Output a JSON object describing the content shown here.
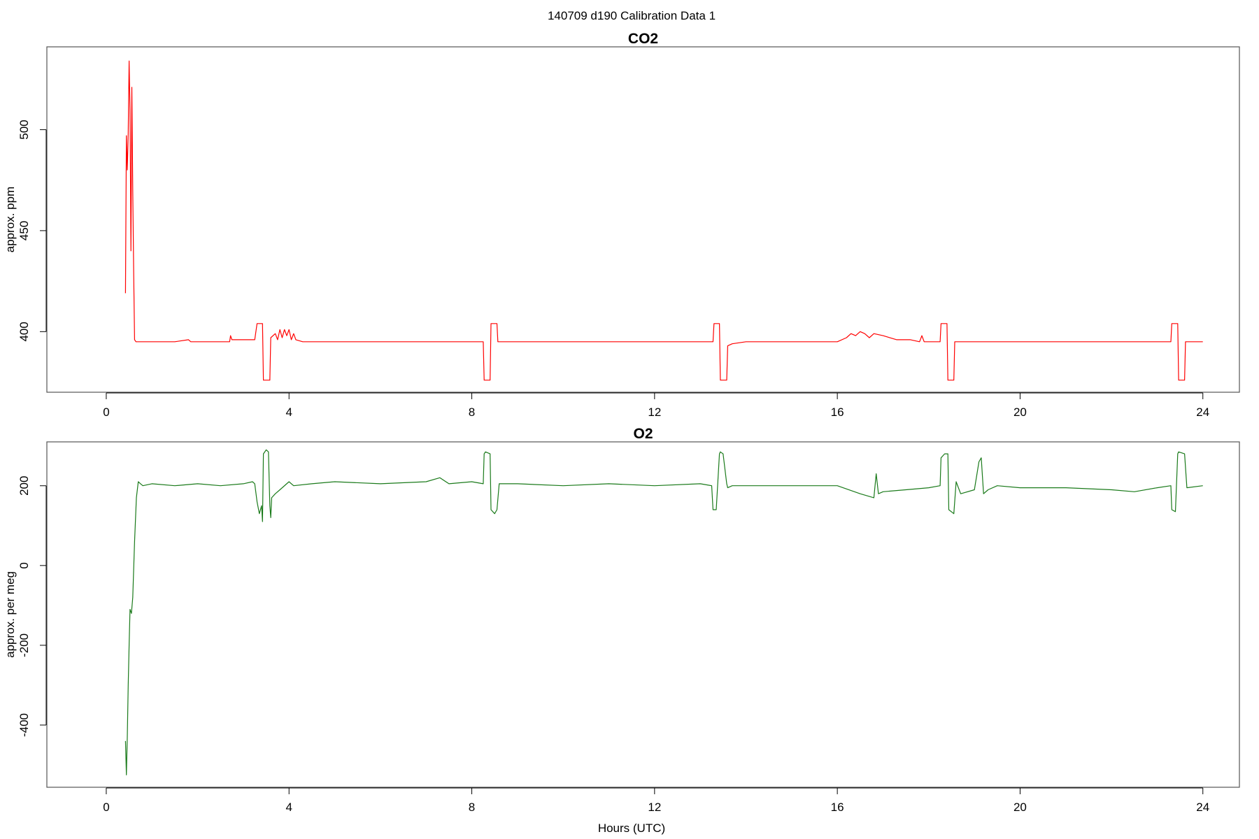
{
  "figure": {
    "title": "140709   d190   Calibration Data 1",
    "xlabel": "Hours (UTC)"
  },
  "chart_data": [
    {
      "type": "line",
      "title": "CO2",
      "ylabel": "approx. ppm",
      "xlim": [
        -1.3,
        24.8
      ],
      "ylim": [
        370,
        541
      ],
      "xticks": [
        "0",
        "4",
        "8",
        "12",
        "16",
        "20",
        "24"
      ],
      "yticks": [
        "400",
        "450",
        "500"
      ],
      "series": [
        {
          "color": "#ff0000",
          "x": [
            0.42,
            0.44,
            0.46,
            0.48,
            0.5,
            0.52,
            0.54,
            0.56,
            0.58,
            0.6,
            0.62,
            0.65,
            0.7,
            1.0,
            1.5,
            1.8,
            1.85,
            1.9,
            2.3,
            2.7,
            2.72,
            2.75,
            3.0,
            3.2,
            3.25,
            3.3,
            3.42,
            3.44,
            3.58,
            3.6,
            3.7,
            3.75,
            3.8,
            3.85,
            3.9,
            3.95,
            4.0,
            4.05,
            4.1,
            4.15,
            4.3,
            5.0,
            6.0,
            7.0,
            8.0,
            8.25,
            8.27,
            8.4,
            8.42,
            8.55,
            8.57,
            9.0,
            10.0,
            11.0,
            12.0,
            13.0,
            13.28,
            13.3,
            13.42,
            13.44,
            13.58,
            13.6,
            13.7,
            14.0,
            15.0,
            16.0,
            16.2,
            16.3,
            16.4,
            16.5,
            16.6,
            16.7,
            16.8,
            17.0,
            17.3,
            17.6,
            17.8,
            17.85,
            17.9,
            18.0,
            18.25,
            18.27,
            18.4,
            18.42,
            18.55,
            18.57,
            19.0,
            20.0,
            21.0,
            22.0,
            23.0,
            23.3,
            23.32,
            23.45,
            23.47,
            23.6,
            23.62,
            24.0
          ],
          "y": [
            419,
            497,
            480,
            498,
            534,
            510,
            440,
            521,
            470,
            430,
            396,
            395,
            395,
            395,
            395,
            396,
            395,
            395,
            395,
            395,
            398,
            396,
            396,
            396,
            396,
            404,
            404,
            376,
            376,
            397,
            399,
            396,
            401,
            397,
            401,
            398,
            401,
            396,
            399,
            396,
            395,
            395,
            395,
            395,
            395,
            395,
            376,
            376,
            404,
            404,
            395,
            395,
            395,
            395,
            395,
            395,
            395,
            404,
            404,
            376,
            376,
            393,
            394,
            395,
            395,
            395,
            397,
            399,
            398,
            400,
            399,
            397,
            399,
            398,
            396,
            396,
            395,
            398,
            395,
            395,
            395,
            404,
            404,
            376,
            376,
            395,
            395,
            395,
            395,
            395,
            395,
            395,
            404,
            404,
            376,
            376,
            395,
            395
          ]
        }
      ]
    },
    {
      "type": "line",
      "title": "O2",
      "ylabel": "approx. per meg",
      "xlim": [
        -1.3,
        24.8
      ],
      "ylim": [
        -556,
        310
      ],
      "xticks": [
        "0",
        "4",
        "8",
        "12",
        "16",
        "20",
        "24"
      ],
      "yticks": [
        "-400",
        "-200",
        "0",
        "200"
      ],
      "series": [
        {
          "color": "#1a7a1a",
          "x": [
            0.42,
            0.44,
            0.46,
            0.48,
            0.5,
            0.52,
            0.55,
            0.58,
            0.62,
            0.66,
            0.7,
            0.75,
            0.8,
            1.0,
            1.5,
            2.0,
            2.5,
            3.0,
            3.2,
            3.25,
            3.3,
            3.35,
            3.4,
            3.42,
            3.44,
            3.5,
            3.55,
            3.58,
            3.6,
            3.62,
            3.7,
            3.8,
            4.0,
            4.1,
            4.5,
            5.0,
            6.0,
            7.0,
            7.3,
            7.5,
            8.0,
            8.25,
            8.27,
            8.3,
            8.4,
            8.42,
            8.5,
            8.55,
            8.6,
            9.0,
            10.0,
            11.0,
            12.0,
            13.0,
            13.25,
            13.28,
            13.35,
            13.42,
            13.44,
            13.5,
            13.58,
            13.6,
            13.7,
            14.0,
            15.0,
            16.0,
            16.5,
            16.8,
            16.85,
            16.9,
            17.0,
            17.5,
            18.0,
            18.25,
            18.27,
            18.35,
            18.42,
            18.44,
            18.55,
            18.6,
            18.7,
            19.0,
            19.1,
            19.15,
            19.2,
            19.3,
            19.5,
            20.0,
            21.0,
            22.0,
            22.5,
            23.0,
            23.3,
            23.32,
            23.4,
            23.45,
            23.47,
            23.6,
            23.65,
            24.0
          ],
          "y": [
            -440,
            -525,
            -430,
            -300,
            -200,
            -110,
            -120,
            -80,
            60,
            170,
            210,
            205,
            200,
            205,
            200,
            205,
            200,
            205,
            210,
            205,
            160,
            130,
            150,
            110,
            280,
            290,
            285,
            150,
            120,
            170,
            180,
            190,
            210,
            200,
            205,
            210,
            205,
            210,
            220,
            205,
            210,
            205,
            280,
            285,
            280,
            140,
            130,
            140,
            205,
            205,
            200,
            205,
            200,
            205,
            200,
            140,
            140,
            280,
            285,
            280,
            205,
            195,
            200,
            200,
            200,
            200,
            180,
            170,
            230,
            180,
            185,
            190,
            195,
            200,
            270,
            280,
            280,
            140,
            130,
            210,
            180,
            190,
            260,
            270,
            180,
            190,
            200,
            195,
            195,
            190,
            185,
            195,
            200,
            140,
            135,
            280,
            285,
            280,
            195,
            200
          ]
        }
      ]
    }
  ]
}
